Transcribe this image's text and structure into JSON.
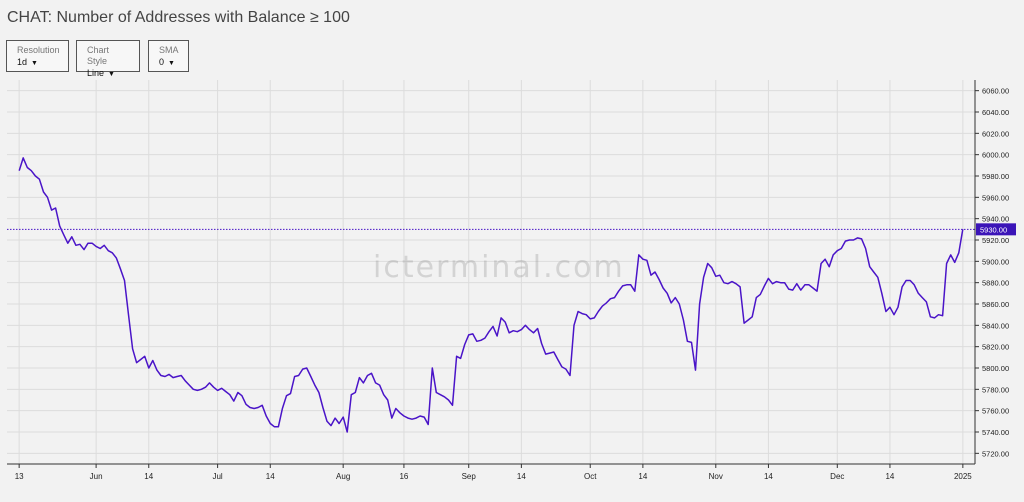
{
  "title": "CHAT: Number of Addresses with Balance ≥ 100",
  "controls": [
    {
      "label": "Resolution",
      "value": "1d"
    },
    {
      "label": "Chart Style",
      "value": "Line"
    },
    {
      "label": "SMA",
      "value": "0"
    }
  ],
  "watermark": "icterminal.com",
  "colors": {
    "line": "#4a14c8",
    "price_tag_bg": "#3b14b8",
    "grid": "#dcdcdc",
    "background": "#f2f2f2"
  },
  "chart_data": {
    "type": "line",
    "title": "CHAT: Number of Addresses with Balance ≥ 100",
    "ylim": [
      5710,
      6070
    ],
    "y_ticks": [
      6060,
      6040,
      6020,
      6000,
      5980,
      5960,
      5940,
      5920,
      5900,
      5880,
      5860,
      5840,
      5820,
      5800,
      5780,
      5760,
      5740,
      5720
    ],
    "y_tick_labels": [
      "6060.00",
      "6040.00",
      "6020.00",
      "6000.00",
      "5980.00",
      "5960.00",
      "5940.00",
      "5920.00",
      "5900.00",
      "5880.00",
      "5860.00",
      "5840.00",
      "5820.00",
      "5800.00",
      "5780.00",
      "5760.00",
      "5740.00",
      "5720.00"
    ],
    "x_range": [
      "2024-05-10",
      "2025-01-04"
    ],
    "x_ticks": [
      {
        "date": "2024-05-13",
        "label": "13"
      },
      {
        "date": "2024-06-01",
        "label": "Jun"
      },
      {
        "date": "2024-06-14",
        "label": "14"
      },
      {
        "date": "2024-07-01",
        "label": "Jul"
      },
      {
        "date": "2024-07-14",
        "label": "14"
      },
      {
        "date": "2024-08-01",
        "label": "Aug"
      },
      {
        "date": "2024-08-16",
        "label": "16"
      },
      {
        "date": "2024-09-01",
        "label": "Sep"
      },
      {
        "date": "2024-09-14",
        "label": "14"
      },
      {
        "date": "2024-10-01",
        "label": "Oct"
      },
      {
        "date": "2024-10-14",
        "label": "14"
      },
      {
        "date": "2024-11-01",
        "label": "Nov"
      },
      {
        "date": "2024-11-14",
        "label": "14"
      },
      {
        "date": "2024-12-01",
        "label": "Dec"
      },
      {
        "date": "2024-12-14",
        "label": "14"
      },
      {
        "date": "2025-01-01",
        "label": "2025"
      }
    ],
    "last_value": 5930,
    "last_value_label": "5930.00",
    "grid": true,
    "series": [
      {
        "points": [
          [
            "2024-05-13",
            5985
          ],
          [
            "2024-05-14",
            5997
          ],
          [
            "2024-05-15",
            5988
          ],
          [
            "2024-05-16",
            5985
          ],
          [
            "2024-05-17",
            5980
          ],
          [
            "2024-05-18",
            5977
          ],
          [
            "2024-05-19",
            5965
          ],
          [
            "2024-05-20",
            5960
          ],
          [
            "2024-05-21",
            5948
          ],
          [
            "2024-05-22",
            5950
          ],
          [
            "2024-05-23",
            5933
          ],
          [
            "2024-05-24",
            5925
          ],
          [
            "2024-05-25",
            5917
          ],
          [
            "2024-05-26",
            5923
          ],
          [
            "2024-05-27",
            5915
          ],
          [
            "2024-05-28",
            5916
          ],
          [
            "2024-05-29",
            5911
          ],
          [
            "2024-05-30",
            5917
          ],
          [
            "2024-05-31",
            5917
          ],
          [
            "2024-06-01",
            5914
          ],
          [
            "2024-06-02",
            5912
          ],
          [
            "2024-06-03",
            5915
          ],
          [
            "2024-06-04",
            5910
          ],
          [
            "2024-06-05",
            5908
          ],
          [
            "2024-06-06",
            5903
          ],
          [
            "2024-06-07",
            5893
          ],
          [
            "2024-06-08",
            5882
          ],
          [
            "2024-06-09",
            5850
          ],
          [
            "2024-06-10",
            5818
          ],
          [
            "2024-06-11",
            5805
          ],
          [
            "2024-06-12",
            5808
          ],
          [
            "2024-06-13",
            5811
          ],
          [
            "2024-06-14",
            5800
          ],
          [
            "2024-06-15",
            5807
          ],
          [
            "2024-06-16",
            5798
          ],
          [
            "2024-06-17",
            5793
          ],
          [
            "2024-06-18",
            5792
          ],
          [
            "2024-06-19",
            5794
          ],
          [
            "2024-06-20",
            5791
          ],
          [
            "2024-06-21",
            5792
          ],
          [
            "2024-06-22",
            5793
          ],
          [
            "2024-06-23",
            5788
          ],
          [
            "2024-06-24",
            5784
          ],
          [
            "2024-06-25",
            5780
          ],
          [
            "2024-06-26",
            5779
          ],
          [
            "2024-06-27",
            5780
          ],
          [
            "2024-06-28",
            5782
          ],
          [
            "2024-06-29",
            5786
          ],
          [
            "2024-06-30",
            5782
          ],
          [
            "2024-07-01",
            5779
          ],
          [
            "2024-07-02",
            5781
          ],
          [
            "2024-07-03",
            5778
          ],
          [
            "2024-07-04",
            5775
          ],
          [
            "2024-07-05",
            5769
          ],
          [
            "2024-07-06",
            5777
          ],
          [
            "2024-07-07",
            5774
          ],
          [
            "2024-07-08",
            5766
          ],
          [
            "2024-07-09",
            5763
          ],
          [
            "2024-07-10",
            5762
          ],
          [
            "2024-07-11",
            5763
          ],
          [
            "2024-07-12",
            5765
          ],
          [
            "2024-07-13",
            5755
          ],
          [
            "2024-07-14",
            5748
          ],
          [
            "2024-07-15",
            5745
          ],
          [
            "2024-07-16",
            5745
          ],
          [
            "2024-07-17",
            5762
          ],
          [
            "2024-07-18",
            5774
          ],
          [
            "2024-07-19",
            5776
          ],
          [
            "2024-07-20",
            5792
          ],
          [
            "2024-07-21",
            5793
          ],
          [
            "2024-07-22",
            5799
          ],
          [
            "2024-07-23",
            5800
          ],
          [
            "2024-07-24",
            5792
          ],
          [
            "2024-07-25",
            5784
          ],
          [
            "2024-07-26",
            5777
          ],
          [
            "2024-07-27",
            5763
          ],
          [
            "2024-07-28",
            5750
          ],
          [
            "2024-07-29",
            5746
          ],
          [
            "2024-07-30",
            5753
          ],
          [
            "2024-07-31",
            5748
          ],
          [
            "2024-08-01",
            5754
          ],
          [
            "2024-08-02",
            5740
          ],
          [
            "2024-08-03",
            5775
          ],
          [
            "2024-08-04",
            5777
          ],
          [
            "2024-08-05",
            5791
          ],
          [
            "2024-08-06",
            5786
          ],
          [
            "2024-08-07",
            5793
          ],
          [
            "2024-08-08",
            5795
          ],
          [
            "2024-08-09",
            5786
          ],
          [
            "2024-08-10",
            5784
          ],
          [
            "2024-08-11",
            5775
          ],
          [
            "2024-08-12",
            5770
          ],
          [
            "2024-08-13",
            5753
          ],
          [
            "2024-08-14",
            5762
          ],
          [
            "2024-08-15",
            5758
          ],
          [
            "2024-08-16",
            5755
          ],
          [
            "2024-08-17",
            5753
          ],
          [
            "2024-08-18",
            5752
          ],
          [
            "2024-08-19",
            5753
          ],
          [
            "2024-08-20",
            5755
          ],
          [
            "2024-08-21",
            5754
          ],
          [
            "2024-08-22",
            5747
          ],
          [
            "2024-08-23",
            5800
          ],
          [
            "2024-08-24",
            5777
          ],
          [
            "2024-08-25",
            5775
          ],
          [
            "2024-08-26",
            5773
          ],
          [
            "2024-08-27",
            5770
          ],
          [
            "2024-08-28",
            5765
          ],
          [
            "2024-08-29",
            5811
          ],
          [
            "2024-08-30",
            5809
          ],
          [
            "2024-08-31",
            5822
          ],
          [
            "2024-09-01",
            5831
          ],
          [
            "2024-09-02",
            5832
          ],
          [
            "2024-09-03",
            5825
          ],
          [
            "2024-09-04",
            5826
          ],
          [
            "2024-09-05",
            5828
          ],
          [
            "2024-09-06",
            5834
          ],
          [
            "2024-09-07",
            5839
          ],
          [
            "2024-09-08",
            5830
          ],
          [
            "2024-09-09",
            5847
          ],
          [
            "2024-09-10",
            5843
          ],
          [
            "2024-09-11",
            5833
          ],
          [
            "2024-09-12",
            5835
          ],
          [
            "2024-09-13",
            5834
          ],
          [
            "2024-09-14",
            5836
          ],
          [
            "2024-09-15",
            5840
          ],
          [
            "2024-09-16",
            5836
          ],
          [
            "2024-09-17",
            5833
          ],
          [
            "2024-09-18",
            5837
          ],
          [
            "2024-09-19",
            5823
          ],
          [
            "2024-09-20",
            5813
          ],
          [
            "2024-09-21",
            5814
          ],
          [
            "2024-09-22",
            5815
          ],
          [
            "2024-09-23",
            5808
          ],
          [
            "2024-09-24",
            5801
          ],
          [
            "2024-09-25",
            5799
          ],
          [
            "2024-09-26",
            5793
          ],
          [
            "2024-09-27",
            5840
          ],
          [
            "2024-09-28",
            5853
          ],
          [
            "2024-09-29",
            5851
          ],
          [
            "2024-09-30",
            5850
          ],
          [
            "2024-10-01",
            5846
          ],
          [
            "2024-10-02",
            5847
          ],
          [
            "2024-10-03",
            5853
          ],
          [
            "2024-10-04",
            5858
          ],
          [
            "2024-10-05",
            5861
          ],
          [
            "2024-10-06",
            5865
          ],
          [
            "2024-10-07",
            5866
          ],
          [
            "2024-10-08",
            5872
          ],
          [
            "2024-10-09",
            5877
          ],
          [
            "2024-10-10",
            5878
          ],
          [
            "2024-10-11",
            5878
          ],
          [
            "2024-10-12",
            5872
          ],
          [
            "2024-10-13",
            5906
          ],
          [
            "2024-10-14",
            5902
          ],
          [
            "2024-10-15",
            5901
          ],
          [
            "2024-10-16",
            5887
          ],
          [
            "2024-10-17",
            5890
          ],
          [
            "2024-10-18",
            5883
          ],
          [
            "2024-10-19",
            5875
          ],
          [
            "2024-10-20",
            5870
          ],
          [
            "2024-10-21",
            5861
          ],
          [
            "2024-10-22",
            5866
          ],
          [
            "2024-10-23",
            5860
          ],
          [
            "2024-10-24",
            5845
          ],
          [
            "2024-10-25",
            5825
          ],
          [
            "2024-10-26",
            5824
          ],
          [
            "2024-10-27",
            5798
          ],
          [
            "2024-10-28",
            5860
          ],
          [
            "2024-10-29",
            5885
          ],
          [
            "2024-10-30",
            5898
          ],
          [
            "2024-10-31",
            5894
          ],
          [
            "2024-11-01",
            5886
          ],
          [
            "2024-11-02",
            5887
          ],
          [
            "2024-11-03",
            5880
          ],
          [
            "2024-11-04",
            5879
          ],
          [
            "2024-11-05",
            5881
          ],
          [
            "2024-11-06",
            5879
          ],
          [
            "2024-11-07",
            5876
          ],
          [
            "2024-11-08",
            5842
          ],
          [
            "2024-11-09",
            5845
          ],
          [
            "2024-11-10",
            5848
          ],
          [
            "2024-11-11",
            5866
          ],
          [
            "2024-11-12",
            5869
          ],
          [
            "2024-11-13",
            5877
          ],
          [
            "2024-11-14",
            5884
          ],
          [
            "2024-11-15",
            5879
          ],
          [
            "2024-11-16",
            5881
          ],
          [
            "2024-11-17",
            5880
          ],
          [
            "2024-11-18",
            5880
          ],
          [
            "2024-11-19",
            5874
          ],
          [
            "2024-11-20",
            5873
          ],
          [
            "2024-11-21",
            5879
          ],
          [
            "2024-11-22",
            5873
          ],
          [
            "2024-11-23",
            5878
          ],
          [
            "2024-11-24",
            5878
          ],
          [
            "2024-11-25",
            5875
          ],
          [
            "2024-11-26",
            5872
          ],
          [
            "2024-11-27",
            5898
          ],
          [
            "2024-11-28",
            5902
          ],
          [
            "2024-11-29",
            5895
          ],
          [
            "2024-11-30",
            5906
          ],
          [
            "2024-12-01",
            5910
          ],
          [
            "2024-12-02",
            5912
          ],
          [
            "2024-12-03",
            5919
          ],
          [
            "2024-12-04",
            5920
          ],
          [
            "2024-12-05",
            5920
          ],
          [
            "2024-12-06",
            5922
          ],
          [
            "2024-12-07",
            5921
          ],
          [
            "2024-12-08",
            5912
          ],
          [
            "2024-12-09",
            5895
          ],
          [
            "2024-12-10",
            5890
          ],
          [
            "2024-12-11",
            5885
          ],
          [
            "2024-12-12",
            5870
          ],
          [
            "2024-12-13",
            5853
          ],
          [
            "2024-12-14",
            5857
          ],
          [
            "2024-12-15",
            5850
          ],
          [
            "2024-12-16",
            5857
          ],
          [
            "2024-12-17",
            5876
          ],
          [
            "2024-12-18",
            5882
          ],
          [
            "2024-12-19",
            5882
          ],
          [
            "2024-12-20",
            5878
          ],
          [
            "2024-12-21",
            5870
          ],
          [
            "2024-12-22",
            5866
          ],
          [
            "2024-12-23",
            5862
          ],
          [
            "2024-12-24",
            5848
          ],
          [
            "2024-12-25",
            5847
          ],
          [
            "2024-12-26",
            5850
          ],
          [
            "2024-12-27",
            5849
          ],
          [
            "2024-12-28",
            5898
          ],
          [
            "2024-12-29",
            5906
          ],
          [
            "2024-12-30",
            5899
          ],
          [
            "2024-12-31",
            5908
          ],
          [
            "2025-01-01",
            5930
          ]
        ]
      }
    ]
  }
}
